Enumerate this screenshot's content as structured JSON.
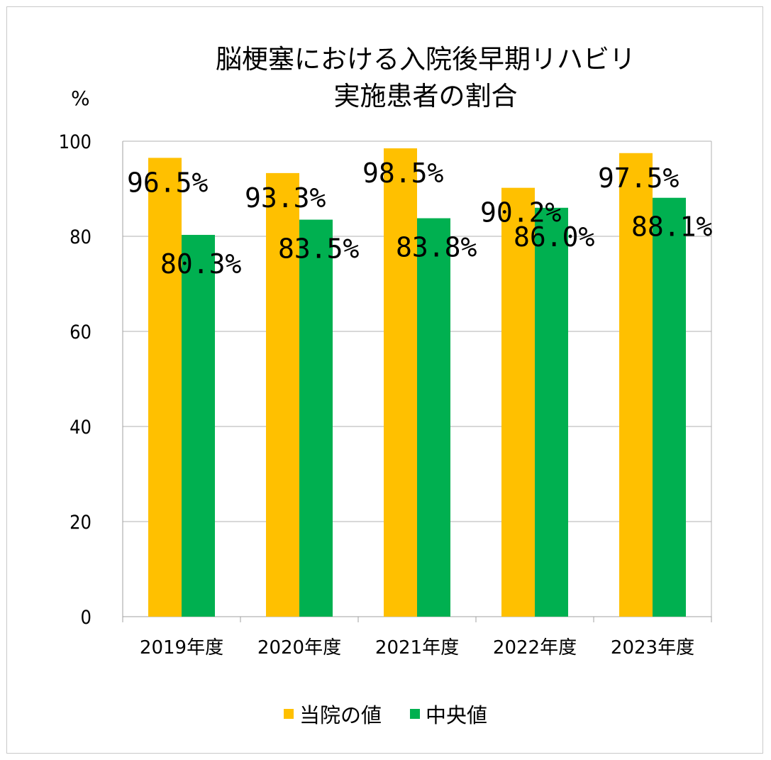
{
  "chart_data": {
    "type": "bar",
    "title_lines": [
      "脳梗塞における入院後早期リハビリ",
      "実施患者の割合"
    ],
    "unit_label": "%",
    "categories": [
      "2019年度",
      "2020年度",
      "2021年度",
      "2022年度",
      "2023年度"
    ],
    "series": [
      {
        "name": "当院の値",
        "color": "#FFC000",
        "values": [
          96.5,
          93.3,
          98.5,
          90.2,
          97.5
        ],
        "labels": [
          "96.5%",
          "93.3%",
          "98.5%",
          "90.2%",
          "97.5%"
        ]
      },
      {
        "name": "中央値",
        "color": "#00B050",
        "values": [
          80.3,
          83.5,
          83.8,
          86.0,
          88.1
        ],
        "labels": [
          "80.3%",
          "83.5%",
          "83.8%",
          "86.0%",
          "88.1%"
        ]
      }
    ],
    "ylim": [
      0,
      100
    ],
    "yticks": [
      0,
      20,
      40,
      60,
      80,
      100
    ],
    "grid": true,
    "legend_position": "bottom"
  }
}
